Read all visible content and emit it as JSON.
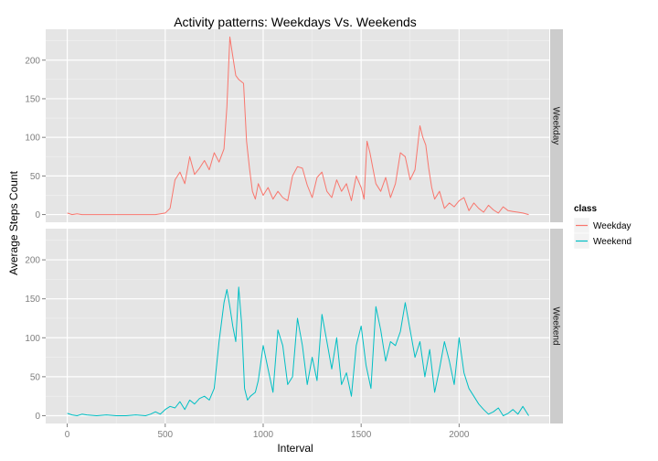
{
  "chart_data": {
    "type": "line",
    "title": "Activity patterns: Weekdays Vs. Weekends",
    "xlabel": "Interval",
    "ylabel": "Average Steps Count",
    "xlim": [
      -110,
      2460
    ],
    "ylim": [
      -10,
      240
    ],
    "x_ticks": [
      0,
      500,
      1000,
      1500,
      2000
    ],
    "y_ticks": [
      0,
      50,
      100,
      150,
      200
    ],
    "grid": true,
    "legend": {
      "title": "class",
      "position": "right"
    },
    "panels": [
      {
        "name": "Weekday",
        "color": "#F8766D",
        "x": [
          0,
          25,
          50,
          75,
          100,
          150,
          200,
          250,
          300,
          350,
          400,
          450,
          500,
          525,
          550,
          575,
          600,
          625,
          650,
          675,
          700,
          725,
          750,
          775,
          800,
          815,
          830,
          845,
          860,
          875,
          900,
          915,
          930,
          945,
          960,
          975,
          1000,
          1025,
          1050,
          1075,
          1100,
          1125,
          1150,
          1175,
          1200,
          1225,
          1250,
          1275,
          1300,
          1325,
          1350,
          1375,
          1400,
          1425,
          1450,
          1475,
          1500,
          1515,
          1530,
          1545,
          1560,
          1575,
          1600,
          1625,
          1650,
          1675,
          1700,
          1725,
          1750,
          1775,
          1800,
          1815,
          1830,
          1845,
          1860,
          1875,
          1900,
          1925,
          1950,
          1975,
          2000,
          2025,
          2050,
          2075,
          2100,
          2125,
          2150,
          2175,
          2200,
          2225,
          2250,
          2275,
          2300,
          2325,
          2355
        ],
        "y": [
          2,
          0,
          1,
          0,
          0,
          0,
          0,
          0,
          0,
          0,
          0,
          0,
          2,
          8,
          45,
          55,
          40,
          75,
          52,
          60,
          70,
          58,
          80,
          68,
          85,
          140,
          230,
          205,
          180,
          175,
          170,
          95,
          60,
          30,
          20,
          40,
          25,
          35,
          20,
          30,
          22,
          18,
          50,
          62,
          60,
          38,
          22,
          48,
          55,
          30,
          22,
          45,
          30,
          40,
          18,
          50,
          35,
          20,
          95,
          80,
          60,
          40,
          30,
          48,
          22,
          40,
          80,
          75,
          45,
          58,
          115,
          100,
          90,
          60,
          35,
          20,
          30,
          8,
          15,
          10,
          18,
          22,
          5,
          15,
          8,
          3,
          12,
          6,
          2,
          10,
          5,
          4,
          3,
          2,
          0
        ]
      },
      {
        "name": "Weekend",
        "color": "#00BFC4",
        "x": [
          0,
          25,
          50,
          75,
          100,
          150,
          200,
          250,
          300,
          350,
          400,
          425,
          450,
          475,
          500,
          525,
          550,
          575,
          600,
          625,
          650,
          675,
          700,
          725,
          750,
          775,
          800,
          815,
          830,
          845,
          860,
          875,
          890,
          905,
          920,
          935,
          960,
          975,
          1000,
          1025,
          1050,
          1075,
          1100,
          1125,
          1150,
          1175,
          1200,
          1225,
          1250,
          1275,
          1300,
          1325,
          1350,
          1375,
          1400,
          1425,
          1450,
          1475,
          1500,
          1525,
          1550,
          1575,
          1600,
          1625,
          1650,
          1675,
          1700,
          1725,
          1750,
          1775,
          1800,
          1825,
          1850,
          1875,
          1900,
          1925,
          1950,
          1975,
          2000,
          2025,
          2050,
          2075,
          2100,
          2125,
          2150,
          2175,
          2200,
          2225,
          2250,
          2275,
          2300,
          2325,
          2355
        ],
        "y": [
          3,
          1,
          0,
          2,
          1,
          0,
          1,
          0,
          0,
          1,
          0,
          2,
          5,
          2,
          8,
          12,
          10,
          18,
          8,
          20,
          15,
          22,
          25,
          20,
          35,
          95,
          145,
          162,
          140,
          115,
          95,
          165,
          118,
          35,
          20,
          25,
          30,
          45,
          90,
          60,
          30,
          110,
          90,
          40,
          50,
          125,
          90,
          40,
          75,
          45,
          130,
          95,
          60,
          100,
          40,
          55,
          25,
          90,
          115,
          65,
          35,
          140,
          110,
          70,
          95,
          90,
          108,
          145,
          110,
          75,
          95,
          50,
          85,
          30,
          60,
          95,
          70,
          40,
          100,
          55,
          35,
          25,
          15,
          8,
          2,
          5,
          10,
          0,
          3,
          8,
          2,
          12,
          0
        ]
      }
    ]
  }
}
